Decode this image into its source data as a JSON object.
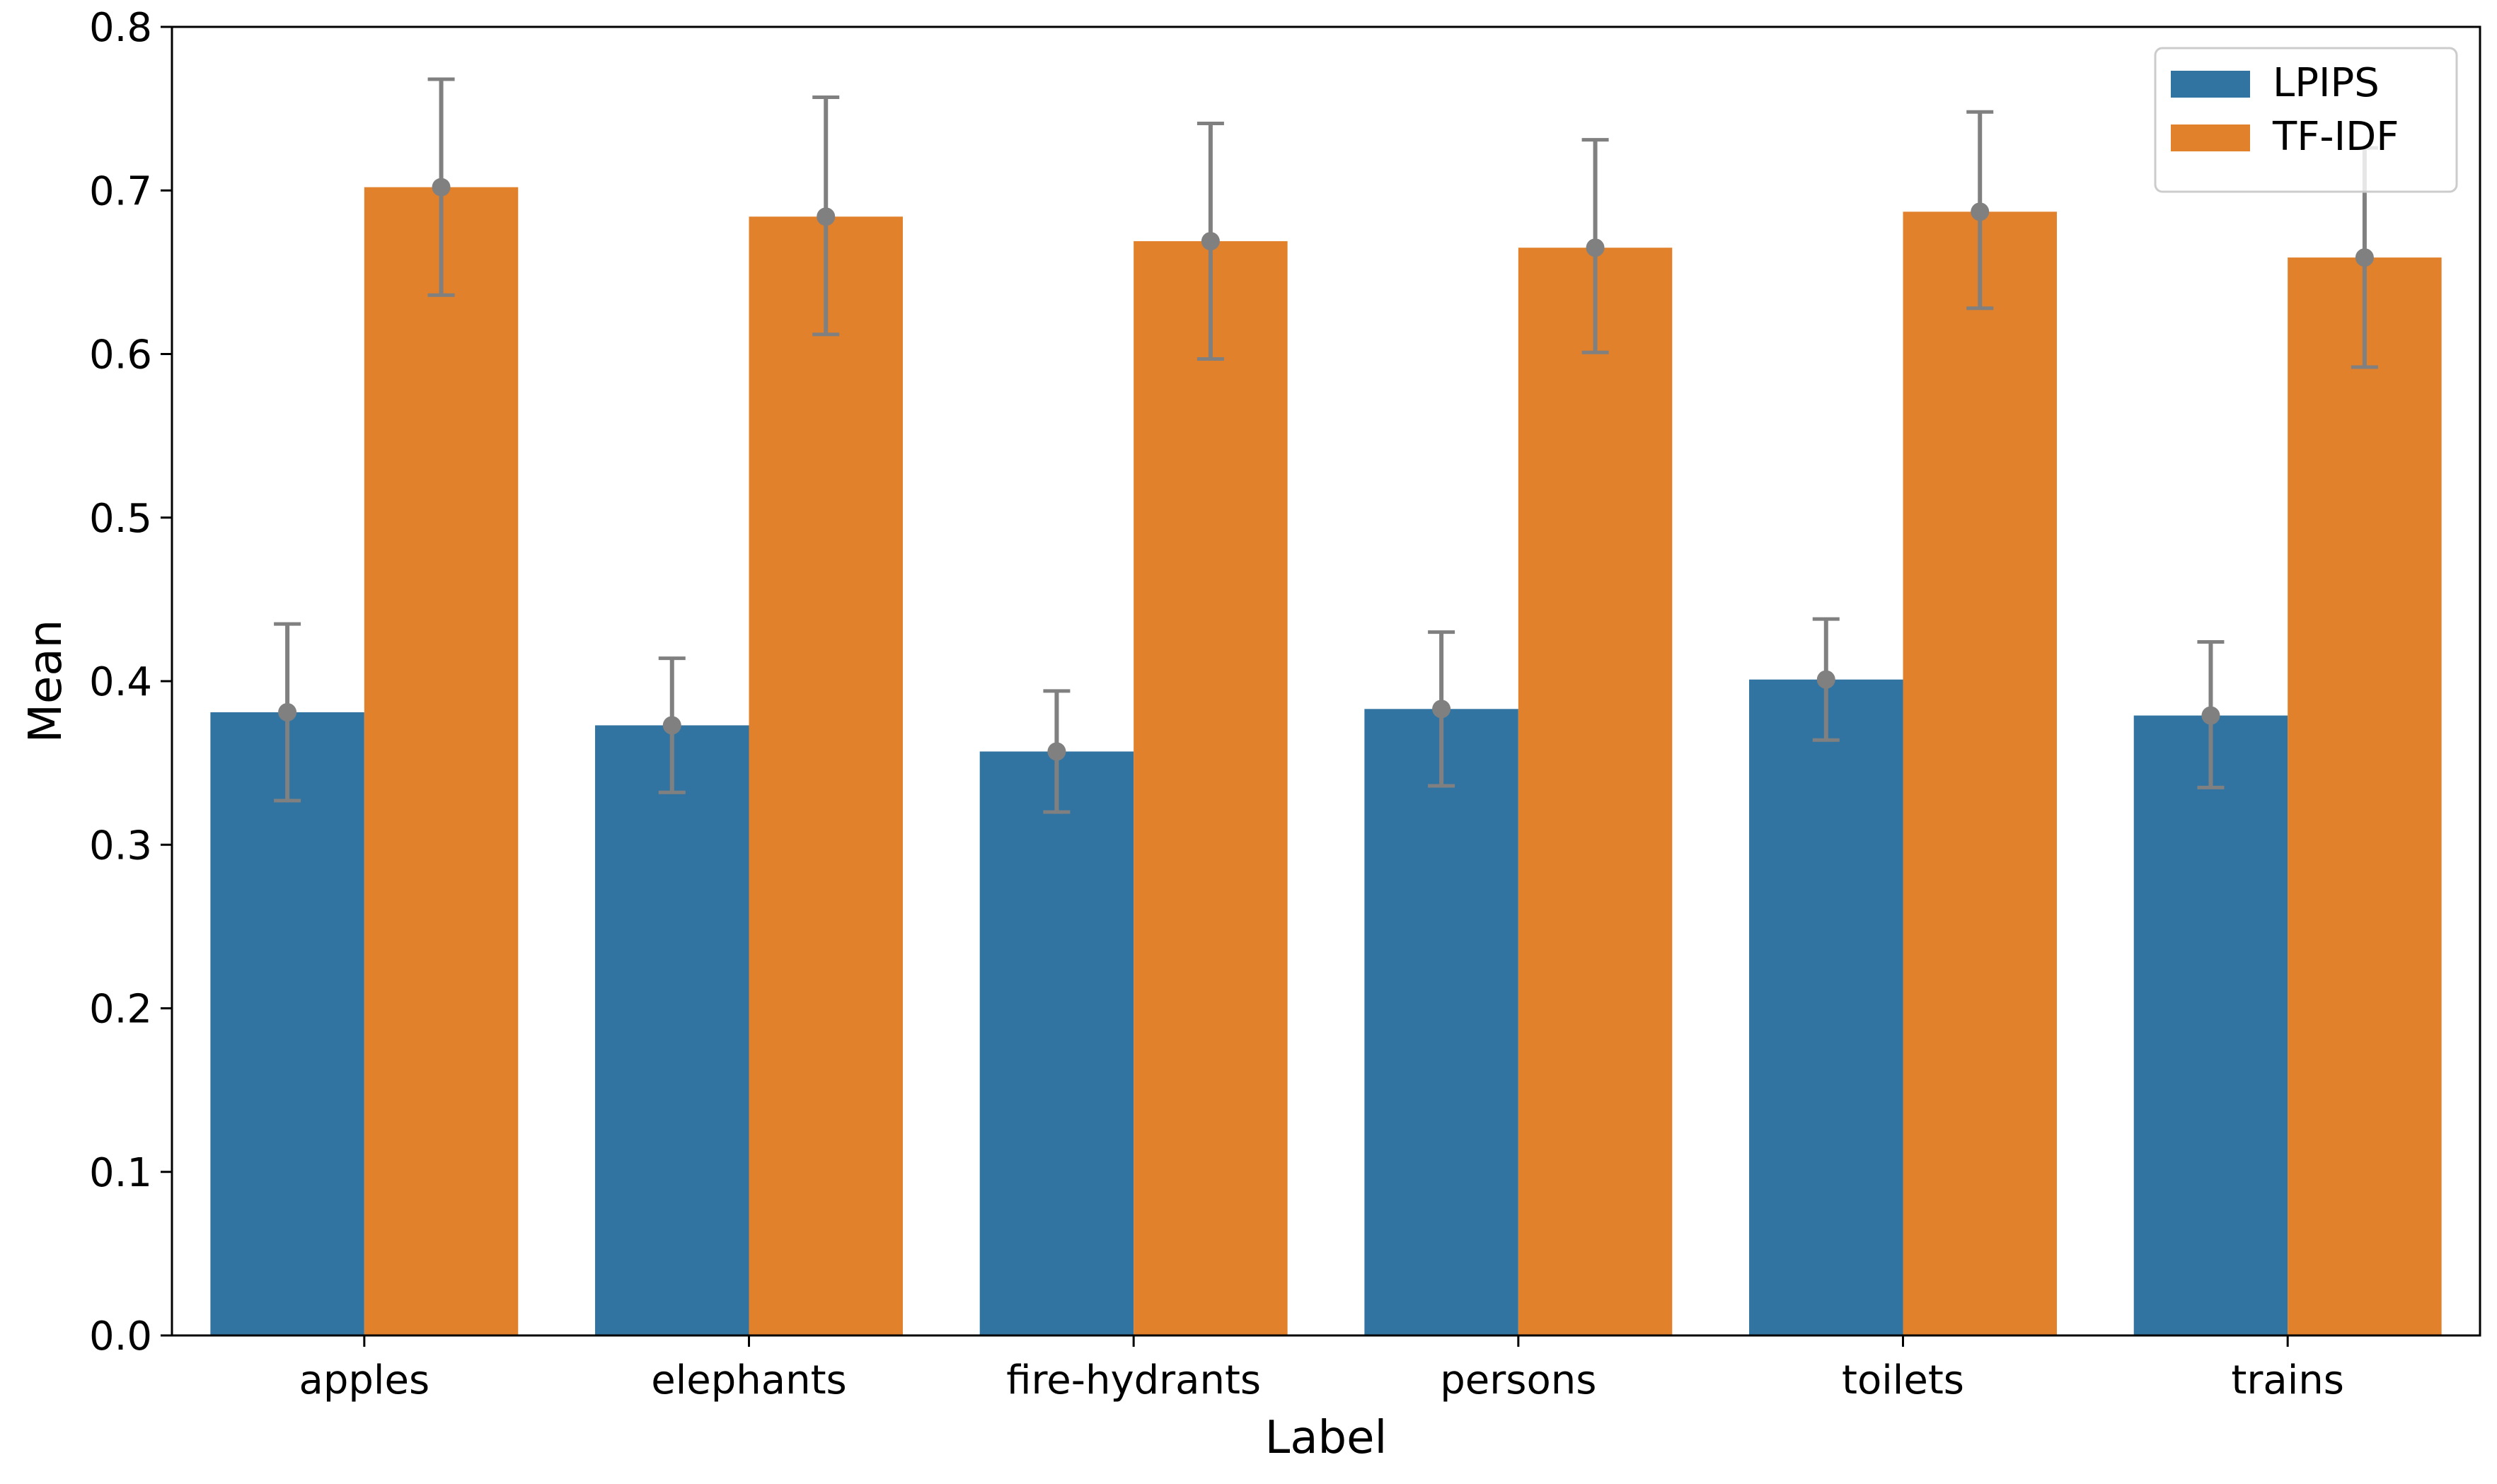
{
  "chart_data": {
    "type": "bar",
    "title": "",
    "xlabel": "Label",
    "ylabel": "Mean",
    "ylim": [
      0,
      0.8
    ],
    "yticks": [
      "0.0",
      "0.1",
      "0.2",
      "0.3",
      "0.4",
      "0.5",
      "0.6",
      "0.7",
      "0.8"
    ],
    "categories": [
      "apples",
      "elephants",
      "fire-hydrants",
      "persons",
      "toilets",
      "trains"
    ],
    "series": [
      {
        "name": "LPIPS",
        "color": "#3274a1",
        "values": [
          0.381,
          0.373,
          0.357,
          0.383,
          0.401,
          0.379
        ],
        "err_low": [
          0.327,
          0.332,
          0.32,
          0.336,
          0.364,
          0.335
        ],
        "err_high": [
          0.435,
          0.414,
          0.394,
          0.43,
          0.438,
          0.424
        ]
      },
      {
        "name": "TF-IDF",
        "color": "#e1812c",
        "values": [
          0.702,
          0.684,
          0.669,
          0.665,
          0.687,
          0.659
        ],
        "err_low": [
          0.636,
          0.612,
          0.597,
          0.601,
          0.628,
          0.592
        ],
        "err_high": [
          0.768,
          0.757,
          0.741,
          0.731,
          0.748,
          0.726
        ]
      }
    ],
    "error_bar_color": "#808080",
    "grid": false,
    "legend": "top-right"
  }
}
